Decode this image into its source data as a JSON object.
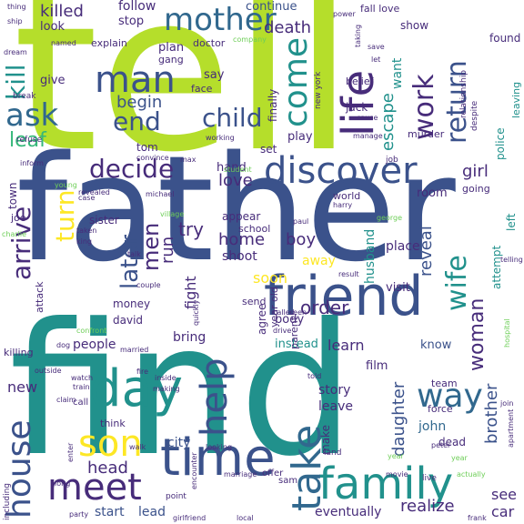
{
  "palette": {
    "dark_purple": "#440154",
    "indigo": "#472c7a",
    "blue": "#3b528b",
    "slate": "#31688e",
    "teal": "#21918c",
    "sea_green": "#1f9e89",
    "green": "#35b779",
    "light_green": "#6ece58",
    "lime": "#b5de2b",
    "yellow": "#fde725"
  },
  "words": [
    {
      "text": "tell",
      "size": 240,
      "color": "lime"
    },
    {
      "text": "father",
      "size": 160,
      "color": "blue"
    },
    {
      "text": "find",
      "size": 200,
      "color": "teal"
    },
    {
      "text": "friend",
      "size": 60,
      "color": "blue"
    },
    {
      "text": "discover",
      "size": 40,
      "color": "blue"
    },
    {
      "text": "mother",
      "size": 34,
      "color": "slate"
    },
    {
      "text": "life",
      "size": 48,
      "color": "indigo"
    },
    {
      "text": "day",
      "size": 56,
      "color": "teal"
    },
    {
      "text": "time",
      "size": 56,
      "color": "blue"
    },
    {
      "text": "family",
      "size": 48,
      "color": "teal"
    },
    {
      "text": "meet",
      "size": 40,
      "color": "indigo"
    },
    {
      "text": "house",
      "size": 36,
      "color": "blue"
    },
    {
      "text": "son",
      "size": 40,
      "color": "yellow"
    },
    {
      "text": "help",
      "size": 40,
      "color": "blue"
    },
    {
      "text": "take",
      "size": 44,
      "color": "slate"
    },
    {
      "text": "way",
      "size": 36,
      "color": "slate"
    },
    {
      "text": "man",
      "size": 40,
      "color": "blue"
    },
    {
      "text": "come",
      "size": 36,
      "color": "teal"
    },
    {
      "text": "work",
      "size": 30,
      "color": "indigo"
    },
    {
      "text": "return",
      "size": 30,
      "color": "blue"
    },
    {
      "text": "ask",
      "size": 34,
      "color": "slate"
    },
    {
      "text": "kill",
      "size": 28,
      "color": "teal"
    },
    {
      "text": "end",
      "size": 28,
      "color": "blue"
    },
    {
      "text": "child",
      "size": 28,
      "color": "blue"
    },
    {
      "text": "decide",
      "size": 28,
      "color": "indigo"
    },
    {
      "text": "arrive",
      "size": 28,
      "color": "indigo"
    },
    {
      "text": "turn",
      "size": 28,
      "color": "yellow"
    },
    {
      "text": "wife",
      "size": 30,
      "color": "teal"
    },
    {
      "text": "leaf",
      "size": 22,
      "color": "green"
    },
    {
      "text": "later",
      "size": 26,
      "color": "blue"
    },
    {
      "text": "men",
      "size": 24,
      "color": "indigo"
    },
    {
      "text": "woman",
      "size": 22,
      "color": "indigo"
    },
    {
      "text": "killed",
      "size": 18,
      "color": "indigo"
    },
    {
      "text": "follow",
      "size": 14,
      "color": "indigo"
    },
    {
      "text": "continue",
      "size": 13,
      "color": "blue"
    },
    {
      "text": "death",
      "size": 18,
      "color": "indigo"
    },
    {
      "text": "escape",
      "size": 18,
      "color": "teal"
    },
    {
      "text": "want",
      "size": 14,
      "color": "teal"
    },
    {
      "text": "begin",
      "size": 18,
      "color": "blue"
    },
    {
      "text": "love",
      "size": 18,
      "color": "indigo"
    },
    {
      "text": "girl",
      "size": 18,
      "color": "indigo"
    },
    {
      "text": "reveal",
      "size": 18,
      "color": "blue"
    },
    {
      "text": "brother",
      "size": 18,
      "color": "blue"
    },
    {
      "text": "daughter",
      "size": 18,
      "color": "blue"
    },
    {
      "text": "order",
      "size": 20,
      "color": "indigo"
    },
    {
      "text": "try",
      "size": 20,
      "color": "indigo"
    },
    {
      "text": "home",
      "size": 18,
      "color": "indigo"
    },
    {
      "text": "boy",
      "size": 18,
      "color": "indigo"
    },
    {
      "text": "run",
      "size": 18,
      "color": "indigo"
    },
    {
      "text": "fight",
      "size": 16,
      "color": "indigo"
    },
    {
      "text": "soon",
      "size": 16,
      "color": "yellow"
    },
    {
      "text": "head",
      "size": 18,
      "color": "indigo"
    },
    {
      "text": "learn",
      "size": 16,
      "color": "indigo"
    },
    {
      "text": "people",
      "size": 14,
      "color": "indigo"
    },
    {
      "text": "new",
      "size": 16,
      "color": "indigo"
    },
    {
      "text": "start",
      "size": 14,
      "color": "blue"
    },
    {
      "text": "lead",
      "size": 14,
      "color": "blue"
    },
    {
      "text": "eventually",
      "size": 14,
      "color": "indigo"
    },
    {
      "text": "realize",
      "size": 18,
      "color": "indigo"
    },
    {
      "text": "see",
      "size": 16,
      "color": "indigo"
    },
    {
      "text": "car",
      "size": 16,
      "color": "indigo"
    },
    {
      "text": "story",
      "size": 14,
      "color": "indigo"
    },
    {
      "text": "leave",
      "size": 14,
      "color": "indigo"
    },
    {
      "text": "make",
      "size": 12,
      "color": "indigo"
    },
    {
      "text": "john",
      "size": 14,
      "color": "slate"
    },
    {
      "text": "dead",
      "size": 12,
      "color": "indigo"
    },
    {
      "text": "film",
      "size": 13,
      "color": "indigo"
    },
    {
      "text": "know",
      "size": 13,
      "color": "blue"
    },
    {
      "text": "instead",
      "size": 13,
      "color": "teal"
    },
    {
      "text": "body",
      "size": 13,
      "color": "indigo"
    },
    {
      "text": "agree",
      "size": 12,
      "color": "indigo"
    },
    {
      "text": "city",
      "size": 14,
      "color": "blue"
    },
    {
      "text": "bring",
      "size": 14,
      "color": "indigo"
    },
    {
      "text": "money",
      "size": 12,
      "color": "indigo"
    },
    {
      "text": "david",
      "size": 12,
      "color": "indigo"
    },
    {
      "text": "shoot",
      "size": 14,
      "color": "indigo"
    },
    {
      "text": "away",
      "size": 14,
      "color": "yellow"
    },
    {
      "text": "appear",
      "size": 12,
      "color": "indigo"
    },
    {
      "text": "school",
      "size": 11,
      "color": "indigo"
    },
    {
      "text": "place",
      "size": 14,
      "color": "indigo"
    },
    {
      "text": "visit",
      "size": 13,
      "color": "indigo"
    },
    {
      "text": "room",
      "size": 13,
      "color": "indigo"
    },
    {
      "text": "husband",
      "size": 14,
      "color": "teal"
    },
    {
      "text": "attempt",
      "size": 12,
      "color": "teal"
    },
    {
      "text": "left",
      "size": 12,
      "color": "teal"
    },
    {
      "text": "police",
      "size": 12,
      "color": "teal"
    },
    {
      "text": "leaving",
      "size": 11,
      "color": "teal"
    },
    {
      "text": "hand",
      "size": 13,
      "color": "indigo"
    },
    {
      "text": "town",
      "size": 12,
      "color": "indigo"
    },
    {
      "text": "joe",
      "size": 11,
      "color": "indigo"
    },
    {
      "text": "sister",
      "size": 12,
      "color": "indigo"
    },
    {
      "text": "plan",
      "size": 13,
      "color": "indigo"
    },
    {
      "text": "stop",
      "size": 13,
      "color": "indigo"
    },
    {
      "text": "look",
      "size": 13,
      "color": "indigo"
    },
    {
      "text": "give",
      "size": 13,
      "color": "indigo"
    },
    {
      "text": "explain",
      "size": 11,
      "color": "indigo"
    },
    {
      "text": "gang",
      "size": 11,
      "color": "indigo"
    },
    {
      "text": "doctor",
      "size": 11,
      "color": "indigo"
    },
    {
      "text": "say",
      "size": 13,
      "color": "indigo"
    },
    {
      "text": "face",
      "size": 11,
      "color": "indigo"
    },
    {
      "text": "finally",
      "size": 12,
      "color": "indigo"
    },
    {
      "text": "play",
      "size": 13,
      "color": "indigo"
    },
    {
      "text": "set",
      "size": 12,
      "color": "indigo"
    },
    {
      "text": "tom",
      "size": 12,
      "color": "indigo"
    },
    {
      "text": "jack",
      "size": 12,
      "color": "indigo"
    },
    {
      "text": "belief",
      "size": 11,
      "color": "indigo"
    },
    {
      "text": "murder",
      "size": 11,
      "color": "indigo"
    },
    {
      "text": "found",
      "size": 12,
      "color": "indigo"
    },
    {
      "text": "show",
      "size": 12,
      "color": "indigo"
    },
    {
      "text": "fall love",
      "size": 11,
      "color": "indigo"
    },
    {
      "text": "job",
      "size": 9,
      "color": "indigo"
    },
    {
      "text": "going",
      "size": 11,
      "color": "indigo"
    },
    {
      "text": "world",
      "size": 11,
      "color": "indigo"
    },
    {
      "text": "attack",
      "size": 11,
      "color": "indigo"
    },
    {
      "text": "parent",
      "size": 11,
      "color": "indigo"
    },
    {
      "text": "send",
      "size": 11,
      "color": "indigo"
    },
    {
      "text": "year old",
      "size": 11,
      "color": "indigo"
    },
    {
      "text": "team",
      "size": 11,
      "color": "indigo"
    },
    {
      "text": "force",
      "size": 11,
      "color": "indigo"
    },
    {
      "text": "think",
      "size": 11,
      "color": "indigo"
    },
    {
      "text": "call",
      "size": 10,
      "color": "indigo"
    },
    {
      "text": "offer",
      "size": 10,
      "color": "indigo"
    },
    {
      "text": "sam",
      "size": 10,
      "color": "indigo"
    },
    {
      "text": "point",
      "size": 9,
      "color": "indigo"
    },
    {
      "text": "party",
      "size": 8,
      "color": "indigo"
    },
    {
      "text": "girlfriend",
      "size": 8,
      "color": "indigo"
    },
    {
      "text": "local",
      "size": 8,
      "color": "indigo"
    },
    {
      "text": "frank",
      "size": 8,
      "color": "indigo"
    },
    {
      "text": "actually",
      "size": 8,
      "color": "light_green"
    },
    {
      "text": "movie",
      "size": 8,
      "color": "indigo"
    },
    {
      "text": "live",
      "size": 9,
      "color": "indigo"
    },
    {
      "text": "peter",
      "size": 8,
      "color": "indigo"
    },
    {
      "text": "year",
      "size": 8,
      "color": "light_green"
    },
    {
      "text": "land",
      "size": 9,
      "color": "indigo"
    },
    {
      "text": "looking",
      "size": 8,
      "color": "indigo"
    },
    {
      "text": "marriage",
      "size": 8,
      "color": "indigo"
    },
    {
      "text": "walk",
      "size": 8,
      "color": "indigo"
    },
    {
      "text": "long",
      "size": 8,
      "color": "indigo"
    },
    {
      "text": "enter",
      "size": 8,
      "color": "indigo"
    },
    {
      "text": "including",
      "size": 9,
      "color": "indigo"
    },
    {
      "text": "killing",
      "size": 11,
      "color": "indigo"
    },
    {
      "text": "outside",
      "size": 8,
      "color": "indigo"
    },
    {
      "text": "claim",
      "size": 8,
      "color": "indigo"
    },
    {
      "text": "dog",
      "size": 8,
      "color": "indigo"
    },
    {
      "text": "watch",
      "size": 8,
      "color": "indigo"
    },
    {
      "text": "train",
      "size": 8,
      "color": "indigo"
    },
    {
      "text": "fire",
      "size": 8,
      "color": "indigo"
    },
    {
      "text": "inside",
      "size": 8,
      "color": "indigo"
    },
    {
      "text": "making",
      "size": 8,
      "color": "indigo"
    },
    {
      "text": "married",
      "size": 8,
      "color": "indigo"
    },
    {
      "text": "confront",
      "size": 8,
      "color": "light_green"
    },
    {
      "text": "couple",
      "size": 8,
      "color": "indigo"
    },
    {
      "text": "quickly",
      "size": 8,
      "color": "indigo"
    },
    {
      "text": "seen",
      "size": 8,
      "color": "indigo"
    },
    {
      "text": "called",
      "size": 8,
      "color": "indigo"
    },
    {
      "text": "drive",
      "size": 8,
      "color": "indigo"
    },
    {
      "text": "told",
      "size": 8,
      "color": "indigo"
    },
    {
      "text": "encounter",
      "size": 8,
      "color": "indigo"
    },
    {
      "text": "join",
      "size": 8,
      "color": "indigo"
    },
    {
      "text": "apartment",
      "size": 8,
      "color": "indigo"
    },
    {
      "text": "hospital",
      "size": 8,
      "color": "light_green"
    },
    {
      "text": "result",
      "size": 8,
      "color": "indigo"
    },
    {
      "text": "paul",
      "size": 8,
      "color": "indigo"
    },
    {
      "text": "george",
      "size": 8,
      "color": "light_green"
    },
    {
      "text": "telling",
      "size": 8,
      "color": "indigo"
    },
    {
      "text": "talk",
      "size": 8,
      "color": "indigo"
    },
    {
      "text": "taken",
      "size": 8,
      "color": "indigo"
    },
    {
      "text": "king",
      "size": 8,
      "color": "indigo"
    },
    {
      "text": "charlie",
      "size": 8,
      "color": "light_green"
    },
    {
      "text": "village",
      "size": 8,
      "color": "light_green"
    },
    {
      "text": "michael",
      "size": 8,
      "color": "indigo"
    },
    {
      "text": "case",
      "size": 8,
      "color": "indigo"
    },
    {
      "text": "revealed",
      "size": 8,
      "color": "indigo"
    },
    {
      "text": "young",
      "size": 8,
      "color": "light_green"
    },
    {
      "text": "student",
      "size": 8,
      "color": "light_green"
    },
    {
      "text": "harry",
      "size": 8,
      "color": "indigo"
    },
    {
      "text": "max",
      "size": 8,
      "color": "indigo"
    },
    {
      "text": "convince",
      "size": 8,
      "color": "indigo"
    },
    {
      "text": "inform",
      "size": 8,
      "color": "indigo"
    },
    {
      "text": "refuse",
      "size": 9,
      "color": "indigo"
    },
    {
      "text": "break",
      "size": 9,
      "color": "indigo"
    },
    {
      "text": "working",
      "size": 8,
      "color": "indigo"
    },
    {
      "text": "manage",
      "size": 8,
      "color": "indigo"
    },
    {
      "text": "new york",
      "size": 9,
      "color": "indigo"
    },
    {
      "text": "cause",
      "size": 8,
      "color": "indigo"
    },
    {
      "text": "despite",
      "size": 9,
      "color": "indigo"
    },
    {
      "text": "relationship",
      "size": 9,
      "color": "indigo"
    },
    {
      "text": "save",
      "size": 8,
      "color": "indigo"
    },
    {
      "text": "let",
      "size": 8,
      "color": "indigo"
    },
    {
      "text": "taking",
      "size": 8,
      "color": "indigo"
    },
    {
      "text": "power",
      "size": 8,
      "color": "indigo"
    },
    {
      "text": "company",
      "size": 8,
      "color": "light_green"
    },
    {
      "text": "named",
      "size": 8,
      "color": "indigo"
    },
    {
      "text": "ship",
      "size": 8,
      "color": "indigo"
    },
    {
      "text": "thing",
      "size": 8,
      "color": "indigo"
    },
    {
      "text": "dream",
      "size": 8,
      "color": "indigo"
    },
    {
      "text": "year",
      "size": 8,
      "color": "light_green"
    }
  ]
}
